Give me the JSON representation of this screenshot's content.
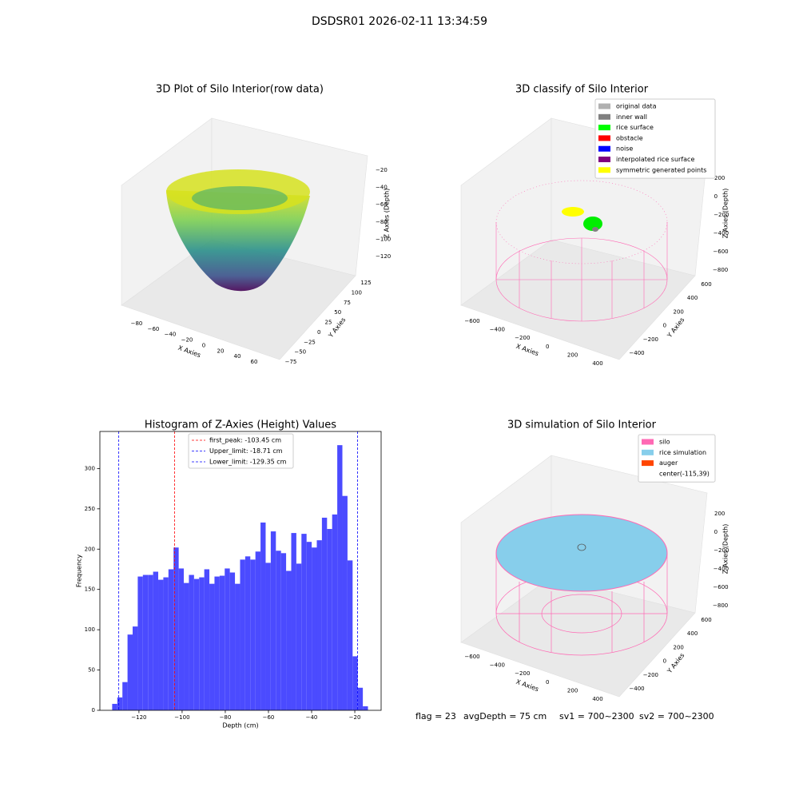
{
  "title": "DSDSR01 2026-02-11 13:34:59",
  "chart_data": [
    {
      "type": "scatter3d",
      "title": "3D Plot of Silo Interior(row data)",
      "xlabel": "X Axies",
      "ylabel": "Y Axies",
      "zlabel": "Z Axies (Depth)",
      "xticks": [
        {
          "value": -80,
          "label": "−80"
        },
        {
          "value": -60,
          "label": "−60"
        },
        {
          "value": -40,
          "label": "−40"
        },
        {
          "value": -20,
          "label": "−20"
        },
        0,
        20,
        40,
        60
      ],
      "yticks": [
        {
          "value": -75,
          "label": "−75"
        },
        {
          "value": -50,
          "label": "−50"
        },
        {
          "value": -25,
          "label": "−25"
        },
        0,
        25,
        50,
        75,
        100,
        125
      ],
      "zticks": [
        {
          "value": -20,
          "label": "−20"
        },
        {
          "value": -40,
          "label": "−40"
        },
        {
          "value": -60,
          "label": "−60"
        },
        {
          "value": -80,
          "label": "−80"
        },
        {
          "value": -100,
          "label": "−100"
        },
        {
          "value": -120,
          "label": "−120"
        }
      ]
    },
    {
      "type": "scatter3d",
      "title": "3D classify of Silo Interior",
      "xlabel": "X Axies",
      "ylabel": "Y Axies",
      "zlabel": "Z Axies (Depth)",
      "xticks": [
        {
          "value": -600,
          "label": "−600"
        },
        {
          "value": -400,
          "label": "−400"
        },
        {
          "value": -200,
          "label": "−200"
        },
        0,
        200,
        400
      ],
      "yticks": [
        {
          "value": -400,
          "label": "−400"
        },
        {
          "value": -200,
          "label": "−200"
        },
        0,
        200,
        400,
        600
      ],
      "zticks": [
        200,
        0,
        {
          "value": -200,
          "label": "−200"
        },
        {
          "value": -400,
          "label": "−400"
        },
        {
          "value": -600,
          "label": "−600"
        },
        {
          "value": -800,
          "label": "−800"
        }
      ],
      "legend": [
        {
          "name": "original data",
          "color": "#b0b0b0"
        },
        {
          "name": "inner wall",
          "color": "#808080"
        },
        {
          "name": "rice surface",
          "color": "#00ff00"
        },
        {
          "name": "obstacle",
          "color": "#ff0000"
        },
        {
          "name": "noise",
          "color": "#0000ff"
        },
        {
          "name": "interpolated rice surface",
          "color": "#800080"
        },
        {
          "name": "symmetric generated points",
          "color": "#ffff00"
        }
      ]
    },
    {
      "type": "histogram",
      "title": "Histogram of Z-Axies (Height) Values",
      "xlabel": "Depth (cm)",
      "ylabel": "Frequency",
      "color": "#4b4bff",
      "bins": [
        -132.4,
        -130.03,
        -127.66,
        -125.29,
        -122.92,
        -120.55,
        -118.18,
        -115.81,
        -113.44,
        -111.07,
        -108.7,
        -106.33,
        -103.96,
        -101.59,
        -99.22,
        -96.85,
        -94.48,
        -92.11,
        -89.74,
        -87.37,
        -85.0,
        -82.63,
        -80.26,
        -77.89,
        -75.52,
        -73.15,
        -70.78,
        -68.41,
        -66.04,
        -63.67,
        -61.3,
        -58.93,
        -56.56,
        -54.19,
        -51.82,
        -49.45,
        -47.08,
        -44.71,
        -42.34,
        -39.97,
        -37.6,
        -35.23,
        -32.86,
        -30.49,
        -28.12,
        -25.75,
        -23.38,
        -21.01,
        -18.64,
        -16.27,
        -13.9
      ],
      "counts": [
        8,
        16,
        35,
        94,
        104,
        166,
        168,
        168,
        172,
        162,
        165,
        175,
        202,
        176,
        158,
        168,
        163,
        165,
        175,
        157,
        166,
        167,
        176,
        171,
        157,
        187,
        191,
        187,
        197,
        233,
        183,
        222,
        198,
        195,
        173,
        220,
        182,
        219,
        209,
        202,
        211,
        239,
        225,
        243,
        329,
        266,
        186,
        67,
        28,
        5
      ],
      "xlim": [
        -138.1,
        -7.8
      ],
      "ylim": [
        0,
        346
      ],
      "xticks": [
        {
          "value": -120,
          "label": "−120"
        },
        {
          "value": -100,
          "label": "−100"
        },
        {
          "value": -80,
          "label": "−80"
        },
        {
          "value": -60,
          "label": "−60"
        },
        {
          "value": -40,
          "label": "−40"
        },
        {
          "value": -20,
          "label": "−20"
        }
      ],
      "yticks": [
        0,
        50,
        100,
        150,
        200,
        250,
        300
      ],
      "lines": [
        {
          "value": -103.45,
          "label": "first_peak: -103.45 cm",
          "color": "#ff0000"
        },
        {
          "value": -18.71,
          "label": "Upper_limit: -18.71 cm",
          "color": "#0000ff"
        },
        {
          "value": -129.35,
          "label": "Lower_limit: -129.35 cm",
          "color": "#0000ff"
        }
      ]
    },
    {
      "type": "surface3d",
      "title": "3D simulation of Silo Interior",
      "xlabel": "X Axies",
      "ylabel": "Y Axies",
      "zlabel": "Z Axies (Depth)",
      "xticks": [
        {
          "value": -600,
          "label": "−600"
        },
        {
          "value": -400,
          "label": "−400"
        },
        {
          "value": -200,
          "label": "−200"
        },
        0,
        200,
        400
      ],
      "yticks": [
        {
          "value": -400,
          "label": "−400"
        },
        {
          "value": -200,
          "label": "−200"
        },
        0,
        200,
        400,
        600
      ],
      "zticks": [
        200,
        0,
        {
          "value": -200,
          "label": "−200"
        },
        {
          "value": -400,
          "label": "−400"
        },
        {
          "value": -600,
          "label": "−600"
        },
        {
          "value": -800,
          "label": "−800"
        }
      ],
      "legend": [
        {
          "name": "silo",
          "color": "#ff69b4"
        },
        {
          "name": "rice simulation",
          "color": "#87ceeb"
        },
        {
          "name": "auger",
          "color": "#ff4500"
        },
        {
          "name": "center(-115,39)",
          "color": null
        }
      ]
    }
  ],
  "footer": [
    "flag = 23",
    "avgDepth = 75 cm",
    "sv1 = 700~2300",
    "sv2 = 700~2300"
  ]
}
